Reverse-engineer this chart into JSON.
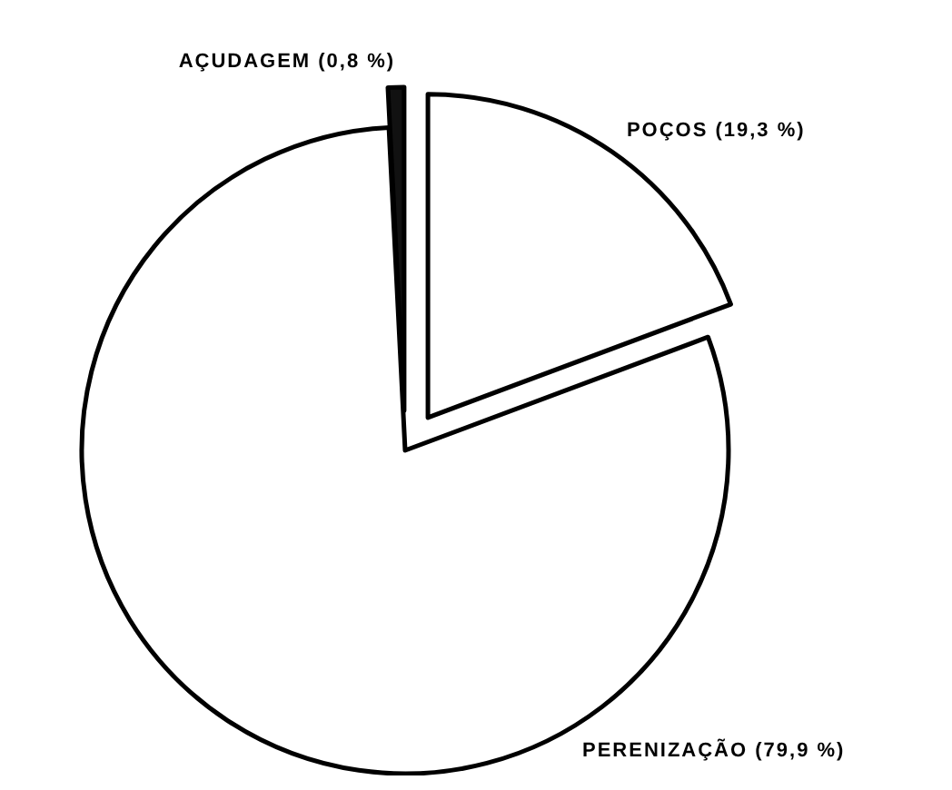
{
  "chart_data": {
    "type": "pie",
    "categories": [
      "POÇOS",
      "PERENIZAÇÃO",
      "AÇUDAGEM"
    ],
    "values": [
      19.3,
      79.9,
      0.8
    ],
    "value_labels": [
      "(19,3 %)",
      "(79,9 %)",
      "(0,8 %)"
    ],
    "colors": [
      "#ffffff",
      "#ffffff",
      "#111111"
    ],
    "data_labels": true
  }
}
